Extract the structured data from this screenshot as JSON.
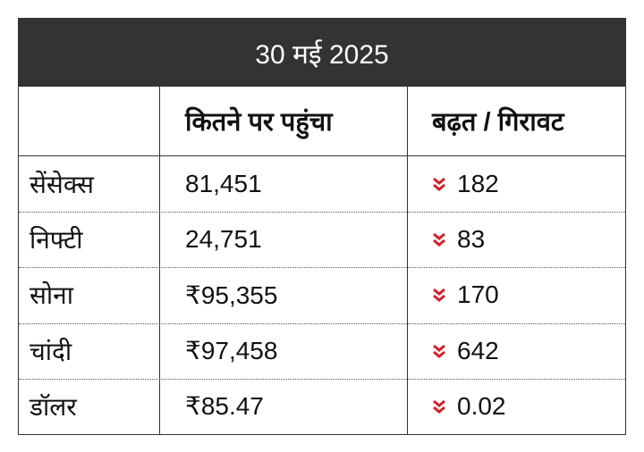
{
  "header": {
    "title": "30 मई 2025"
  },
  "table": {
    "columns": [
      "कितने पर पहुंचा",
      "बढ़त / गिरावट"
    ],
    "rows": [
      [
        "सेंसेक्स",
        "81,451",
        "182"
      ],
      [
        "निफ्टी",
        "24,751",
        "83"
      ],
      [
        "सोना",
        "₹95,355",
        "170"
      ],
      [
        "चांदी",
        "₹97,458",
        "642"
      ],
      [
        "डॉलर",
        "₹85.47",
        "0.02"
      ]
    ]
  }
}
